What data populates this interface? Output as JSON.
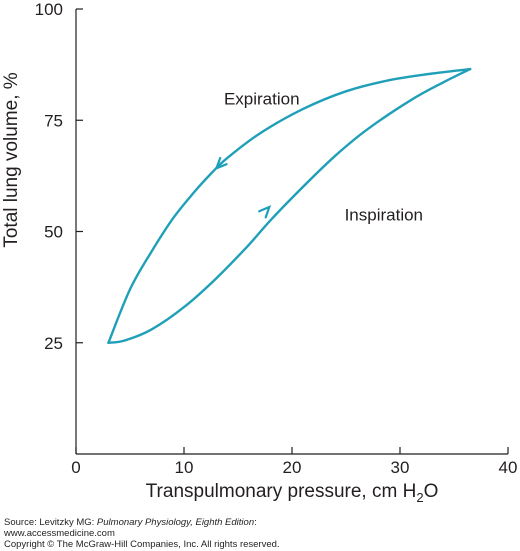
{
  "chart_data": {
    "type": "line",
    "title": "",
    "xlabel": "Transpulmonary pressure, cm H",
    "xlabel_subscript": "2",
    "xlabel_suffix": "O",
    "ylabel": "Total lung volume, %",
    "xlim": [
      0,
      40
    ],
    "ylim": [
      0,
      100
    ],
    "xticks": [
      0,
      10,
      20,
      30,
      40
    ],
    "yticks": [
      25,
      50,
      75,
      100
    ],
    "grid": false,
    "line_color": "#1fa0b8",
    "series": [
      {
        "name": "Inspiration",
        "x": [
          3.0,
          4.5,
          7.0,
          10.0,
          13.0,
          16.0,
          18.0,
          21.0,
          24.0,
          27.0,
          31.0,
          34.0,
          36.5
        ],
        "y": [
          25.0,
          25.5,
          28.0,
          33.0,
          39.5,
          47.0,
          52.5,
          60.0,
          67.0,
          73.0,
          79.5,
          83.5,
          86.5
        ]
      },
      {
        "name": "Expiration",
        "x": [
          36.5,
          33.0,
          29.0,
          25.0,
          21.0,
          17.0,
          14.0,
          12.5,
          11.0,
          9.0,
          7.0,
          5.0,
          3.0
        ],
        "y": [
          86.5,
          85.5,
          84.0,
          81.5,
          77.5,
          72.0,
          66.5,
          63.0,
          59.0,
          53.0,
          45.5,
          37.0,
          25.0
        ]
      }
    ],
    "annotations": [
      {
        "text": "Expiration",
        "x": 17.2,
        "y": 78.5
      },
      {
        "text": "Inspiration",
        "x": 28.5,
        "y": 52.5
      }
    ],
    "arrows": [
      {
        "series": "Expiration",
        "x": 13.0,
        "y": 64.2
      },
      {
        "series": "Inspiration",
        "x": 17.9,
        "y": 55.5
      }
    ]
  },
  "footer": {
    "source_prefix": "Source: Levitzky MG: ",
    "source_title": "Pulmonary Physiology, Eighth Edition",
    "source_suffix": ":",
    "url": "www.accessmedicine.com",
    "copyright": "Copyright © The McGraw-Hill Companies, Inc. All rights reserved."
  }
}
